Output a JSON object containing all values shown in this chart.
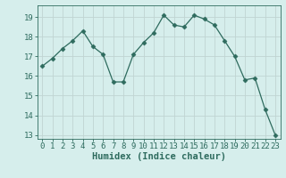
{
  "x": [
    0,
    1,
    2,
    3,
    4,
    5,
    6,
    7,
    8,
    9,
    10,
    11,
    12,
    13,
    14,
    15,
    16,
    17,
    18,
    19,
    20,
    21,
    22,
    23
  ],
  "y": [
    16.5,
    16.9,
    17.4,
    17.8,
    18.3,
    17.5,
    17.1,
    15.7,
    15.7,
    17.1,
    17.7,
    18.2,
    19.1,
    18.6,
    18.5,
    19.1,
    18.9,
    18.6,
    17.8,
    17.0,
    15.8,
    15.9,
    14.3,
    13.0
  ],
  "line_color": "#2e6b5e",
  "marker": "D",
  "marker_size": 2.5,
  "bg_color": "#d6eeec",
  "grid_color": "#c0d4d2",
  "xlabel": "Humidex (Indice chaleur)",
  "xlim": [
    -0.5,
    23.5
  ],
  "ylim": [
    12.8,
    19.6
  ],
  "yticks": [
    13,
    14,
    15,
    16,
    17,
    18,
    19
  ],
  "xticks": [
    0,
    1,
    2,
    3,
    4,
    5,
    6,
    7,
    8,
    9,
    10,
    11,
    12,
    13,
    14,
    15,
    16,
    17,
    18,
    19,
    20,
    21,
    22,
    23
  ],
  "tick_color": "#2e6b5e",
  "xlabel_fontsize": 7.5,
  "tick_fontsize": 6.5
}
